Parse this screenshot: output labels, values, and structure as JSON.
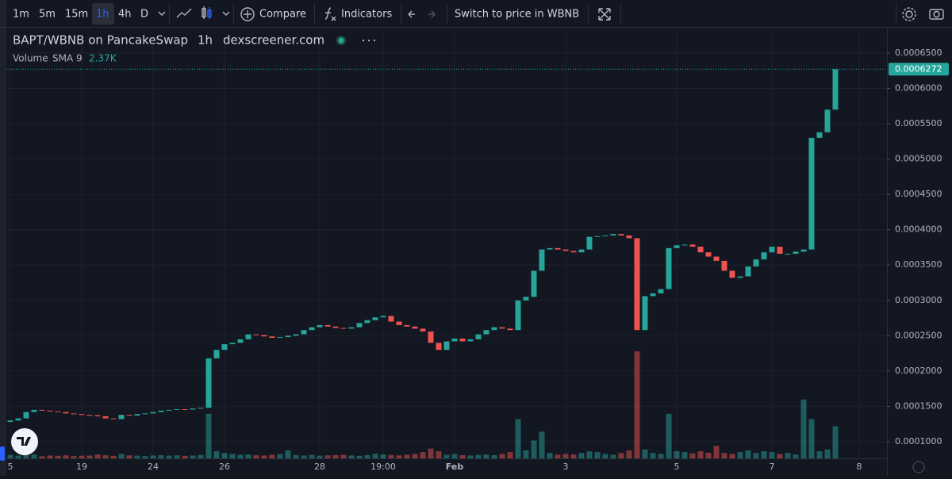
{
  "toolbar": {
    "intervals": [
      "1m",
      "5m",
      "15m",
      "1h",
      "4h",
      "D"
    ],
    "active_interval": "1h",
    "compare": "Compare",
    "indicators": "Indicators",
    "switch": "Switch to price in WBNB"
  },
  "chart_data": {
    "type": "candlestick",
    "symbol": "BAPT/WBNB on PancakeSwap",
    "interval": "1h",
    "source": "dexscreener.com",
    "volume_label": "Volume",
    "sma_label": "SMA 9",
    "sma_value": "2.37K",
    "up_color": "#26a69a",
    "down_color": "#ef5350",
    "ylim": [
      7.64e-05,
      0.000687
    ],
    "yticks": [
      {
        "value": 0.0001,
        "label": "0.0001000"
      },
      {
        "value": 0.00015,
        "label": "0.0001500"
      },
      {
        "value": 0.0002,
        "label": "0.0002000"
      },
      {
        "value": 0.00025,
        "label": "0.0002500"
      },
      {
        "value": 0.0003,
        "label": "0.0003000"
      },
      {
        "value": 0.00035,
        "label": "0.0003500"
      },
      {
        "value": 0.0004,
        "label": "0.0004000"
      },
      {
        "value": 0.00045,
        "label": "0.0004500"
      },
      {
        "value": 0.0005,
        "label": "0.0005000"
      },
      {
        "value": 0.00055,
        "label": "0.0005500"
      },
      {
        "value": 0.0006,
        "label": "0.0006000"
      },
      {
        "value": 0.00065,
        "label": "0.0006500"
      }
    ],
    "grid": true,
    "categories": [
      "5",
      null,
      null,
      null,
      null,
      null,
      null,
      null,
      null,
      "19",
      null,
      null,
      null,
      null,
      null,
      null,
      null,
      null,
      "24",
      null,
      null,
      null,
      null,
      null,
      null,
      null,
      null,
      "26",
      null,
      null,
      null,
      null,
      null,
      null,
      null,
      null,
      null,
      null,
      null,
      "28",
      null,
      null,
      null,
      null,
      null,
      null,
      null,
      "19:00",
      null,
      null,
      null,
      null,
      null,
      null,
      null,
      null,
      "Feb",
      null,
      null,
      null,
      null,
      null,
      null,
      null,
      null,
      null,
      null,
      null,
      null,
      null,
      "3",
      null,
      null,
      null,
      null,
      null,
      null,
      null,
      null,
      null,
      null,
      null,
      null,
      null,
      "5",
      null,
      null,
      null,
      null,
      null,
      null,
      null,
      null,
      null,
      null,
      null,
      "7",
      null,
      null,
      null,
      null,
      null,
      null,
      null,
      null,
      null,
      null,
      "8"
    ],
    "open": [
      0.000128,
      0.00013,
      0.000133,
      0.000142,
      0.000145,
      0.000144,
      0.000143,
      0.000142,
      0.00014,
      0.000139,
      0.000138,
      0.0001375,
      0.000136,
      0.000133,
      0.000132,
      0.000138,
      0.000137,
      0.000139,
      0.00014,
      0.000142,
      0.000144,
      0.000145,
      0.000146,
      0.0001455,
      0.000147,
      0.000148,
      0.000218,
      0.00023,
      0.000238,
      0.00024,
      0.000245,
      0.000252,
      0.000251,
      0.000249,
      0.000247,
      0.000248,
      0.00025,
      0.000252,
      0.000258,
      0.000262,
      0.000265,
      0.000263,
      0.000261,
      0.00026,
      0.000262,
      0.000268,
      0.000272,
      0.000276,
      0.000278,
      0.00027,
      0.000265,
      0.000263,
      0.00026,
      0.000256,
      0.00024,
      0.00023,
      0.000242,
      0.000246,
      0.000242,
      0.000245,
      0.000252,
      0.000258,
      0.000262,
      0.00026,
      0.000258,
      0.0003,
      0.000305,
      0.000342,
      0.000372,
      0.000374,
      0.000372,
      0.00037,
      0.000368,
      0.000372,
      0.00039,
      0.000391,
      0.000392,
      0.000394,
      0.000392,
      0.000388,
      0.000258,
      0.000306,
      0.00031,
      0.000316,
      0.000374,
      0.000378,
      0.000379,
      0.000376,
      0.000368,
      0.000362,
      0.000356,
      0.000342,
      0.000332,
      0.000334,
      0.000348,
      0.000358,
      0.000368,
      0.000376,
      0.000366,
      0.000366,
      0.000369,
      0.000372,
      0.00053,
      0.000538,
      0.00057,
      null,
      null,
      null
    ],
    "close": [
      0.00013,
      0.000133,
      0.000142,
      0.000145,
      0.000144,
      0.000143,
      0.000142,
      0.00014,
      0.000139,
      0.000138,
      0.0001375,
      0.000136,
      0.000133,
      0.000132,
      0.000138,
      0.000137,
      0.000139,
      0.00014,
      0.000142,
      0.000144,
      0.000145,
      0.000146,
      0.0001455,
      0.000147,
      0.000148,
      0.000218,
      0.00023,
      0.000238,
      0.00024,
      0.000245,
      0.000252,
      0.000251,
      0.000249,
      0.000247,
      0.000248,
      0.00025,
      0.000252,
      0.000258,
      0.000262,
      0.000265,
      0.000263,
      0.000261,
      0.00026,
      0.000262,
      0.000268,
      0.000272,
      0.000276,
      0.000278,
      0.00027,
      0.000265,
      0.000263,
      0.00026,
      0.000256,
      0.00024,
      0.00023,
      0.000242,
      0.000246,
      0.000242,
      0.000245,
      0.000252,
      0.000258,
      0.000262,
      0.00026,
      0.000258,
      0.0003,
      0.000305,
      0.000342,
      0.000372,
      0.000374,
      0.000372,
      0.00037,
      0.000368,
      0.000372,
      0.00039,
      0.000391,
      0.000392,
      0.000394,
      0.000392,
      0.000388,
      0.000258,
      0.000306,
      0.00031,
      0.000316,
      0.000374,
      0.000378,
      0.000379,
      0.000376,
      0.000368,
      0.000362,
      0.000356,
      0.000342,
      0.000332,
      0.000334,
      0.000348,
      0.000358,
      0.000368,
      0.000376,
      0.000366,
      0.000366,
      0.000369,
      0.000372,
      0.00053,
      0.000538,
      0.00057,
      0.0006272,
      null,
      null,
      null
    ],
    "volume": [
      2000,
      1500,
      1800,
      2200,
      1200,
      1600,
      1400,
      1700,
      1300,
      1500,
      1600,
      2200,
      1800,
      1400,
      2500,
      1700,
      1500,
      1300,
      1600,
      1800,
      1500,
      1700,
      1400,
      1600,
      2000,
      25000,
      4000,
      3000,
      2500,
      2000,
      2200,
      1800,
      1600,
      2000,
      2400,
      4500,
      1800,
      1600,
      2000,
      1500,
      1700,
      1800,
      2000,
      1600,
      1400,
      1800,
      2600,
      2200,
      1900,
      1700,
      2100,
      2500,
      3500,
      5500,
      4000,
      2000,
      2400,
      1800,
      1600,
      2000,
      2200,
      1800,
      2500,
      3500,
      22000,
      4500,
      10000,
      15000,
      3000,
      2000,
      2500,
      2200,
      3000,
      4000,
      3500,
      2500,
      2000,
      3000,
      4500,
      60000,
      5000,
      3000,
      2500,
      25000,
      4000,
      3500,
      2800,
      4000,
      3200,
      7000,
      3000,
      2500,
      3500,
      4500,
      3000,
      4000,
      3500,
      2500,
      3000,
      2200,
      33000,
      22000,
      4000,
      5000,
      18000,
      null,
      null,
      null
    ]
  }
}
